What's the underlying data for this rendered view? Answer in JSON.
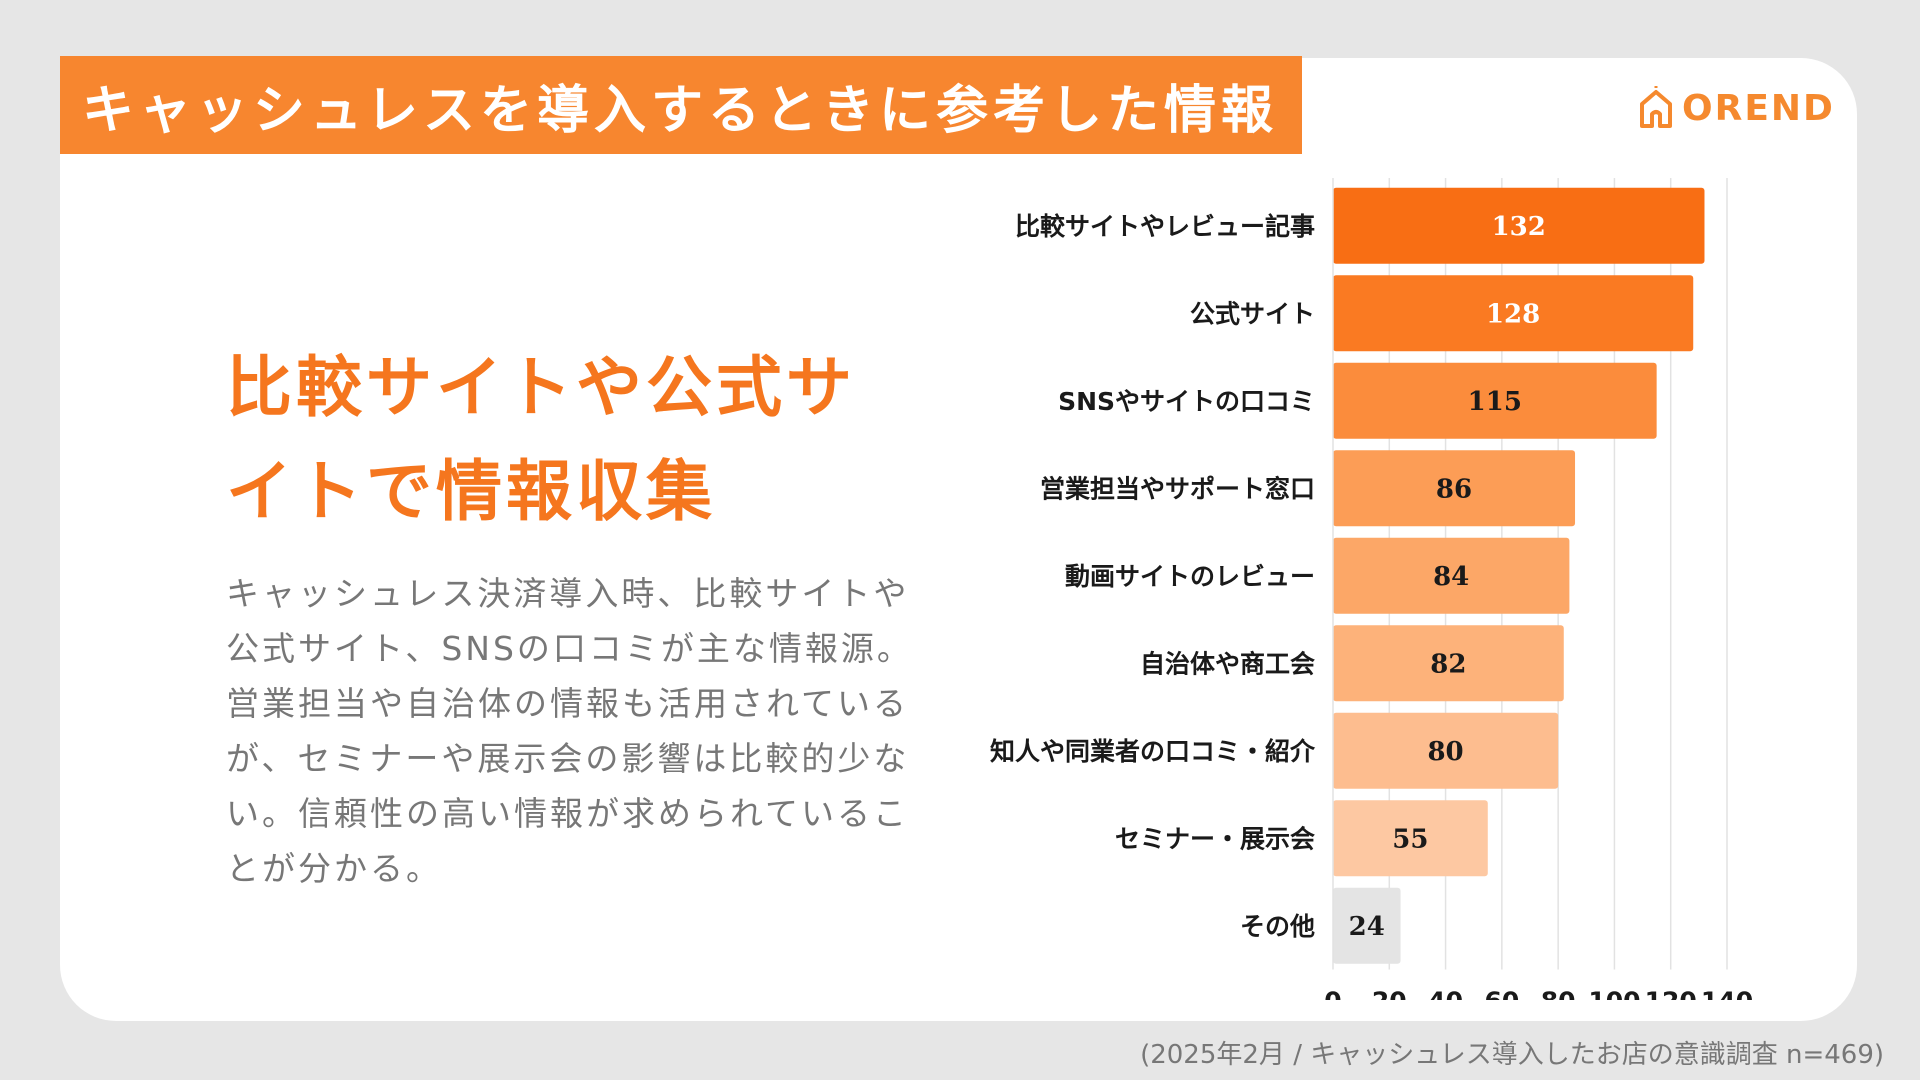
{
  "title": "キャッシュレスを導入するときに参考した情報",
  "logo": {
    "text": "OREND",
    "icon": "house-logo-icon",
    "color": "#f5892e"
  },
  "headline": {
    "line1": "比較サイトや公式サ",
    "line2": "イトで情報収集"
  },
  "body_text": "キャッシュレス決済導入時、比較サイトや公式サイト、SNSの口コミが主な情報源。営業担当や自治体の情報も活用されているが、セミナーや展示会の影響は比較的少ない。信頼性の高い情報が求められていることが分かる。",
  "source_note": "(2025年2月 / キャッシュレス導入したお店の意識調査 n=469)",
  "colors": {
    "accent": "#f7862f",
    "headline": "#f5761e",
    "bars": [
      "#f86e14",
      "#fa7a22",
      "#fb8c3c",
      "#fc9d56",
      "#fca767",
      "#fdb27a",
      "#fdbd8f",
      "#fdc8a2",
      "#e4e4e4"
    ]
  },
  "chart_data": {
    "type": "bar",
    "orientation": "horizontal",
    "categories": [
      "比較サイトやレビュー記事",
      "公式サイト",
      "SNSやサイトの口コミ",
      "営業担当やサポート窓口",
      "動画サイトのレビュー",
      "自治体や商工会",
      "知人や同業者の口コミ・紹介",
      "セミナー・展示会",
      "その他"
    ],
    "values": [
      132,
      128,
      115,
      86,
      84,
      82,
      80,
      55,
      24
    ],
    "title": "",
    "xlabel": "",
    "ylabel": "",
    "xlim": [
      0,
      140
    ],
    "xticks": [
      0,
      20,
      40,
      60,
      80,
      100,
      120,
      140
    ],
    "grid": true,
    "data_labels": true
  }
}
